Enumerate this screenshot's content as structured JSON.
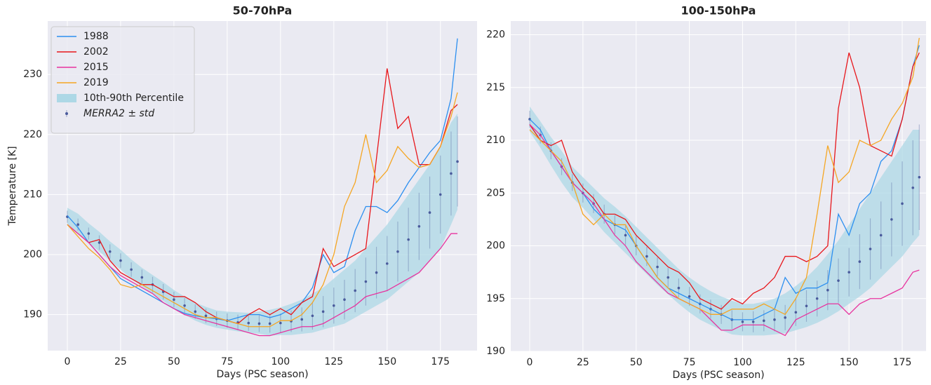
{
  "chart_data": [
    {
      "type": "line",
      "title": "50-70hPa",
      "x_label": "Days (PSC season)",
      "y_label": "Temperature [K]",
      "x": [
        0,
        5,
        10,
        15,
        20,
        25,
        30,
        35,
        40,
        45,
        50,
        55,
        60,
        65,
        70,
        75,
        80,
        85,
        90,
        95,
        100,
        105,
        110,
        115,
        120,
        125,
        130,
        135,
        140,
        145,
        150,
        155,
        160,
        165,
        170,
        175,
        180,
        183
      ],
      "xlim": [
        -9.2,
        192.2
      ],
      "ylim": [
        184,
        238.9
      ],
      "xticks": [
        0,
        25,
        50,
        75,
        100,
        125,
        150,
        175
      ],
      "yticks": [
        190,
        200,
        210,
        220,
        230
      ],
      "grid": true,
      "legend": "upper left",
      "band": {
        "name": "10th-90th Percentile",
        "color": "#add8e6",
        "lower": [
          204.8,
          203.5,
          202,
          200.5,
          199,
          197.5,
          196,
          194.7,
          193.5,
          192.3,
          191,
          190,
          189,
          188.3,
          187.8,
          187.5,
          187.2,
          187,
          186.8,
          186.5,
          186.6,
          186.6,
          186.8,
          187,
          187.5,
          188,
          188.5,
          189.5,
          190.5,
          191.5,
          192.5,
          194,
          195.5,
          197,
          199,
          201,
          205,
          207.5
        ],
        "upper": [
          207.8,
          206.8,
          205.2,
          203.8,
          202.2,
          200.8,
          199.2,
          197.8,
          196.6,
          195.4,
          194.1,
          193,
          192,
          191.3,
          190.7,
          190.5,
          190.4,
          190.3,
          190.5,
          190.8,
          191.2,
          191.8,
          192.5,
          193.5,
          194.5,
          196,
          197.5,
          199,
          201,
          203,
          205,
          207.5,
          210,
          212.5,
          215,
          218,
          222,
          223.5
        ]
      },
      "mean": {
        "name": "MERRA2 ± std",
        "color": "#4a5b9c",
        "values": [
          206.3,
          205,
          203.5,
          202,
          200.5,
          199,
          197.5,
          196.2,
          195,
          193.8,
          192.5,
          191.5,
          190.5,
          189.8,
          189.3,
          189,
          188.7,
          188.6,
          188.5,
          188.5,
          188.6,
          188.9,
          189.2,
          189.8,
          190.5,
          191.5,
          192.5,
          194,
          195.5,
          197,
          198.5,
          200.5,
          202.5,
          204.7,
          207,
          210,
          213.5,
          215.5
        ],
        "std": [
          1,
          1,
          1,
          1.2,
          1.2,
          1.2,
          1.2,
          1.3,
          1.3,
          1.3,
          1.3,
          1.3,
          1.2,
          1.2,
          1.2,
          1.2,
          1.3,
          1.3,
          1.4,
          1.5,
          1.6,
          1.8,
          2,
          2.3,
          2.6,
          3,
          3.3,
          3.6,
          4,
          4.3,
          4.6,
          5,
          5.3,
          5.6,
          6,
          6.5,
          7,
          7.5
        ]
      },
      "series": [
        {
          "name": "1988",
          "color": "#2c8ff0",
          "values": [
            206.5,
            204.5,
            202,
            200,
            198,
            196,
            195,
            194,
            193,
            192,
            191,
            190.2,
            189.8,
            189.5,
            189.3,
            189,
            189.5,
            190,
            190,
            189.5,
            190,
            191,
            192,
            194.5,
            200,
            197,
            198,
            204,
            208,
            208,
            207,
            209,
            212,
            214.5,
            217,
            219,
            226,
            236
          ]
        },
        {
          "name": "2002",
          "color": "#e8161b",
          "values": [
            205,
            203.5,
            202,
            202.5,
            199,
            197,
            196,
            195,
            195,
            194,
            193,
            193,
            192,
            190.5,
            189.5,
            189,
            188.5,
            190,
            191,
            190,
            191,
            190,
            192,
            193,
            201,
            198,
            199,
            200,
            201,
            216,
            231,
            221,
            223,
            215,
            215,
            218,
            224,
            225
          ]
        },
        {
          "name": "2015",
          "color": "#e8339e",
          "values": [
            205,
            203.5,
            202,
            200,
            198,
            196.5,
            195.5,
            194.5,
            193.5,
            192,
            191,
            190,
            189.5,
            189,
            188.5,
            188,
            187.5,
            187,
            186.5,
            186.5,
            187,
            187.5,
            188,
            188,
            188.5,
            189.5,
            190.5,
            191.5,
            193,
            193.5,
            194,
            195,
            196,
            197,
            199,
            201,
            203.5,
            203.5
          ]
        },
        {
          "name": "2019",
          "color": "#f5a623",
          "values": [
            205,
            203,
            201,
            199.5,
            197.5,
            195,
            194.5,
            195,
            194,
            193,
            192,
            191,
            190,
            189.5,
            189.5,
            189,
            188.5,
            188,
            188,
            188,
            189,
            189,
            190,
            192,
            195,
            200,
            208,
            212,
            220,
            212,
            214,
            218,
            216,
            214.5,
            215,
            218,
            223,
            227
          ]
        }
      ]
    },
    {
      "type": "line",
      "title": "100-150hPa",
      "x_label": "Days (PSC season)",
      "x": [
        0,
        5,
        10,
        15,
        20,
        25,
        30,
        35,
        40,
        45,
        50,
        55,
        60,
        65,
        70,
        75,
        80,
        85,
        90,
        95,
        100,
        105,
        110,
        115,
        120,
        125,
        130,
        135,
        140,
        145,
        150,
        155,
        160,
        165,
        170,
        175,
        180,
        183
      ],
      "xlim": [
        -8.9,
        186.2
      ],
      "ylim": [
        190,
        221.3
      ],
      "xticks": [
        0,
        25,
        50,
        75,
        100,
        125,
        150,
        175
      ],
      "yticks": [
        190,
        195,
        200,
        205,
        210,
        215,
        220
      ],
      "grid": true,
      "band": {
        "color": "#add8e6",
        "lower": [
          210.8,
          209.3,
          207.6,
          206,
          204.6,
          203.6,
          202.5,
          201.3,
          200.3,
          199.3,
          198.3,
          197.3,
          196.3,
          195.4,
          194.5,
          193.7,
          193,
          192.5,
          192,
          191.6,
          191.5,
          191.5,
          191.5,
          191.6,
          191.7,
          192,
          192.3,
          192.7,
          193.2,
          193.8,
          194.5,
          195.2,
          196,
          197,
          198,
          199,
          200.3,
          201
        ],
        "upper": [
          213.2,
          211.8,
          210.3,
          209,
          207.5,
          206.5,
          205.5,
          204.5,
          203.7,
          202.8,
          201.8,
          200.8,
          199.8,
          198.8,
          197.8,
          197,
          196.3,
          195.7,
          195.2,
          194.8,
          194.5,
          194.5,
          194.7,
          195,
          195.5,
          196.2,
          197,
          198,
          199.2,
          200.5,
          202,
          203.5,
          205,
          206.5,
          208,
          209.5,
          211,
          211
        ]
      },
      "mean": {
        "color": "#4a5b9c",
        "values": [
          212,
          210.5,
          209,
          207.5,
          206,
          205,
          204,
          203,
          202,
          201,
          200,
          199,
          198,
          197,
          196,
          195.2,
          194.5,
          194,
          193.5,
          193,
          192.8,
          192.8,
          192.9,
          193,
          193.2,
          193.7,
          194.3,
          195,
          195.8,
          196.7,
          197.5,
          198.5,
          199.7,
          201,
          202.5,
          204,
          205.5,
          206.5
        ],
        "std": [
          0.8,
          0.8,
          0.8,
          0.8,
          0.8,
          0.9,
          0.9,
          0.9,
          0.9,
          0.9,
          0.9,
          0.9,
          0.9,
          0.9,
          0.9,
          0.9,
          0.9,
          0.9,
          0.9,
          0.9,
          0.9,
          1,
          1,
          1.1,
          1.2,
          1.3,
          1.5,
          1.7,
          1.9,
          2.1,
          2.3,
          2.6,
          2.9,
          3.2,
          3.5,
          4,
          4.5,
          5
        ]
      },
      "series": [
        {
          "color": "#2c8ff0",
          "values": [
            212,
            211,
            209,
            207.5,
            206,
            205,
            203.5,
            202.5,
            202,
            201.5,
            200,
            198.5,
            197,
            196,
            195.5,
            195,
            194.5,
            194,
            193.5,
            193,
            193,
            193,
            193.5,
            194,
            197,
            195.5,
            196,
            196,
            196.5,
            203,
            201,
            204,
            205,
            208,
            209,
            212,
            217,
            219
          ]
        },
        {
          "color": "#e8161b",
          "values": [
            211.5,
            210,
            209.5,
            210,
            207,
            205.5,
            204.5,
            203,
            203,
            202.5,
            201,
            200,
            199,
            198,
            197.5,
            196.5,
            195,
            194.5,
            194,
            195,
            194.5,
            195.5,
            196,
            197,
            199,
            199,
            198.5,
            199,
            200,
            213,
            218.3,
            215,
            209.5,
            209,
            208.5,
            212,
            217,
            218.3
          ]
        },
        {
          "color": "#e8339e",
          "values": [
            211.5,
            210.5,
            209,
            207.5,
            206,
            205,
            204,
            202.5,
            201,
            200,
            198.5,
            197.5,
            196.5,
            195.5,
            195,
            194.5,
            194,
            193,
            192,
            192,
            192.5,
            192.5,
            192.5,
            192,
            191.5,
            193,
            193.5,
            194,
            194.5,
            194.5,
            193.5,
            194.5,
            195,
            195,
            195.5,
            196,
            197.5,
            197.7
          ]
        },
        {
          "color": "#f5a623",
          "values": [
            211,
            210,
            209,
            208,
            206,
            203,
            202,
            203,
            202,
            202,
            200,
            198.5,
            197,
            196,
            195,
            194.5,
            194,
            193.5,
            193.5,
            194,
            194,
            194,
            194.5,
            194,
            193.5,
            195,
            197,
            203,
            209.5,
            206,
            207,
            210,
            209.5,
            210,
            212,
            213.5,
            216,
            219.7
          ]
        }
      ]
    }
  ]
}
